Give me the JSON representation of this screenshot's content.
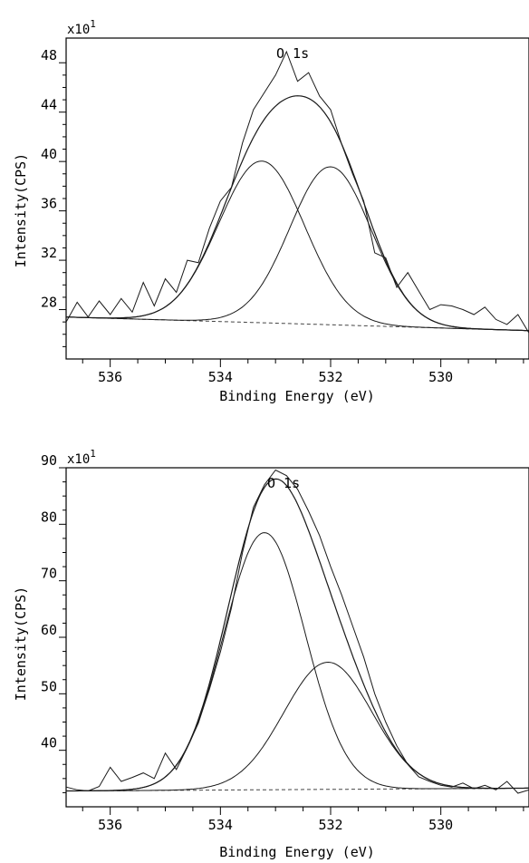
{
  "chart_data": [
    {
      "type": "line",
      "title": "O 1s",
      "xlabel": "Binding Energy (eV)",
      "ylabel": "Intensity(CPS)",
      "y_multiplier_label": "x10",
      "y_multiplier_exp": "1",
      "xlim": [
        536.8,
        528.4
      ],
      "x_reversed": true,
      "ylim": [
        24,
        50
      ],
      "xticks": [
        536,
        534,
        532,
        530
      ],
      "yticks": [
        28,
        32,
        36,
        40,
        44,
        48
      ],
      "grid": false,
      "background": 26.5,
      "baseline": {
        "x": [
          536.8,
          528.4
        ],
        "y": [
          27.4,
          26.3
        ]
      },
      "peaks": [
        {
          "center": 533.25,
          "height": 13.1,
          "sigma": 0.78
        },
        {
          "center": 532.0,
          "height": 12.8,
          "sigma": 0.74
        }
      ],
      "raw_x": [
        536.8,
        536.6,
        536.4,
        536.2,
        536.0,
        535.8,
        535.6,
        535.4,
        535.2,
        535.0,
        534.8,
        534.6,
        534.4,
        534.2,
        534.0,
        533.8,
        533.6,
        533.4,
        533.2,
        533.0,
        532.8,
        532.6,
        532.4,
        532.2,
        532.0,
        531.8,
        531.6,
        531.4,
        531.2,
        531.0,
        530.8,
        530.6,
        530.4,
        530.2,
        530.0,
        529.8,
        529.6,
        529.4,
        529.2,
        529.0,
        528.8,
        528.6,
        528.4
      ],
      "raw_y": [
        27.0,
        28.6,
        27.4,
        28.7,
        27.6,
        28.9,
        27.8,
        30.2,
        28.3,
        30.5,
        29.4,
        32.0,
        31.8,
        34.6,
        36.8,
        37.9,
        41.5,
        44.2,
        45.6,
        47.0,
        48.9,
        46.5,
        47.2,
        45.3,
        44.2,
        41.4,
        39.0,
        36.8,
        32.6,
        32.2,
        29.8,
        31.0,
        29.5,
        28.0,
        28.4,
        28.3,
        28.0,
        27.6,
        28.2,
        27.2,
        26.8,
        27.6,
        26.1
      ],
      "colors": {
        "line": "#1a1a1a",
        "frame": "#000000",
        "baseline": "#444444"
      }
    },
    {
      "type": "line",
      "title": "O 1s",
      "xlabel": "Binding Energy (eV)",
      "ylabel": "Intensity(CPS)",
      "y_multiplier_label": "x10",
      "y_multiplier_exp": "1",
      "xlim": [
        536.8,
        528.4
      ],
      "x_reversed": true,
      "ylim": [
        30,
        90
      ],
      "xticks": [
        536,
        534,
        532,
        530
      ],
      "yticks": [
        40,
        50,
        60,
        70,
        80,
        90
      ],
      "grid": false,
      "background": 33.2,
      "baseline": {
        "x": [
          536.8,
          528.4
        ],
        "y": [
          32.8,
          33.3
        ]
      },
      "peaks": [
        {
          "center": 533.2,
          "height": 45.5,
          "sigma": 0.74
        },
        {
          "center": 532.05,
          "height": 22.5,
          "sigma": 0.8
        }
      ],
      "raw_x": [
        536.8,
        536.6,
        536.4,
        536.2,
        536.0,
        535.8,
        535.6,
        535.4,
        535.2,
        535.0,
        534.8,
        534.6,
        534.4,
        534.2,
        534.0,
        533.8,
        533.6,
        533.4,
        533.2,
        533.0,
        532.8,
        532.6,
        532.4,
        532.2,
        532.0,
        531.8,
        531.6,
        531.4,
        531.2,
        531.0,
        530.8,
        530.6,
        530.4,
        530.2,
        530.0,
        529.8,
        529.6,
        529.4,
        529.2,
        529.0,
        528.8,
        528.6,
        528.4
      ],
      "raw_y": [
        33.5,
        33.0,
        32.8,
        33.6,
        37.0,
        34.5,
        35.2,
        36.0,
        35.0,
        39.5,
        36.6,
        40.5,
        44.8,
        50.8,
        57.4,
        65.2,
        75.0,
        83.0,
        87.0,
        89.6,
        88.6,
        86.2,
        82.3,
        78.0,
        72.5,
        67.5,
        62.0,
        56.5,
        50.0,
        45.0,
        40.8,
        37.5,
        35.3,
        34.5,
        33.8,
        33.5,
        34.2,
        33.2,
        33.8,
        33.0,
        34.5,
        32.4,
        33.0
      ],
      "colors": {
        "line": "#1a1a1a",
        "frame": "#000000",
        "baseline": "#444444"
      }
    }
  ]
}
